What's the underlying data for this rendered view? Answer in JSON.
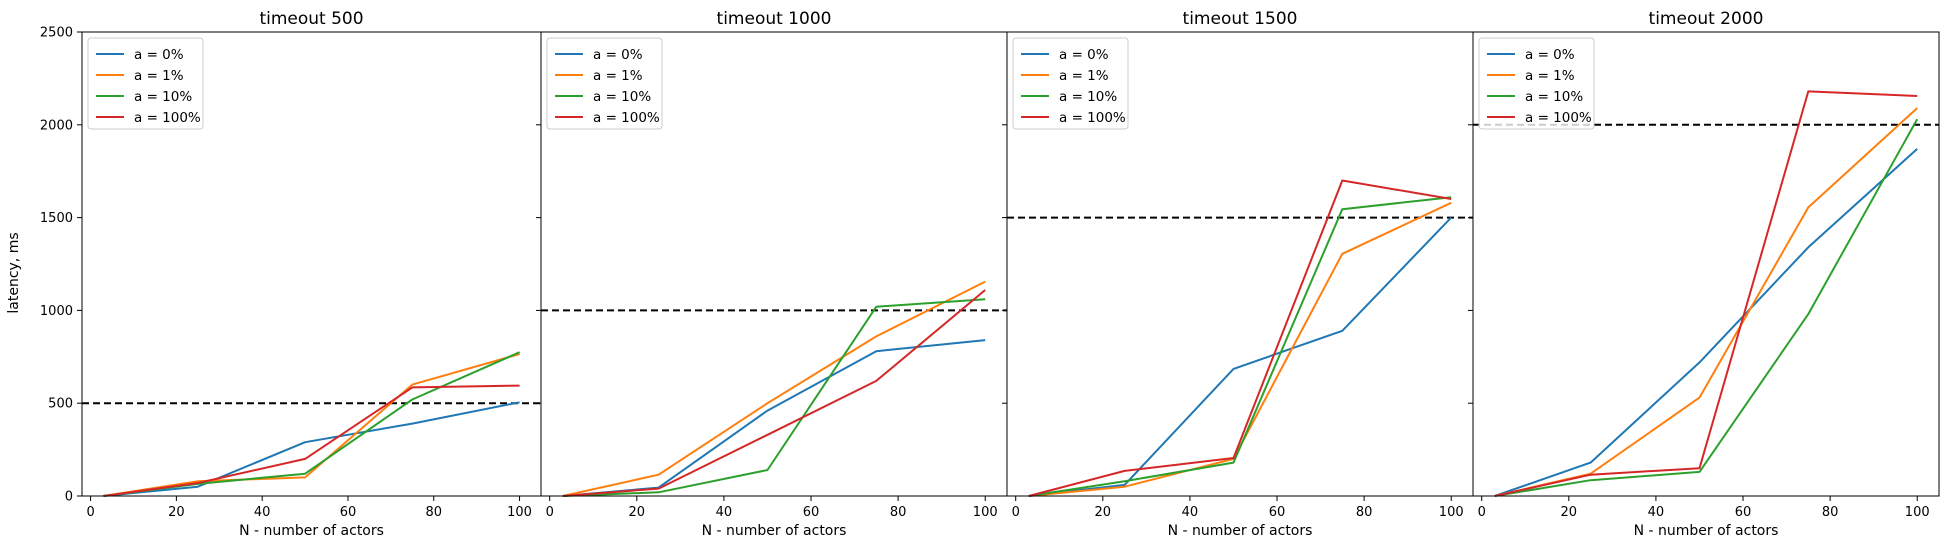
{
  "figure": {
    "ylabel": "latency, ms",
    "xlabel": "N - number of actors"
  },
  "colors": {
    "a = 0%": "#1f77b4",
    "a = 1%": "#ff7f0e",
    "a = 10%": "#2ca02c",
    "a = 100%": "#d62728",
    "threshold": "#000000"
  },
  "chart_data": [
    {
      "type": "line",
      "title": "timeout 500",
      "xlabel": "N - number of actors",
      "ylabel": "latency, ms",
      "xlim": [
        -2,
        105
      ],
      "ylim": [
        0,
        2500
      ],
      "xticks": [
        0,
        20,
        40,
        60,
        80,
        100
      ],
      "yticks": [
        0,
        500,
        1000,
        1500,
        2000,
        2500
      ],
      "legend_position": "top-left",
      "threshold": 500,
      "x": [
        3,
        25,
        50,
        75,
        100
      ],
      "series": [
        {
          "name": "a = 0%",
          "values": [
            0,
            50,
            290,
            390,
            505
          ]
        },
        {
          "name": "a = 1%",
          "values": [
            0,
            80,
            100,
            600,
            765
          ]
        },
        {
          "name": "a = 10%",
          "values": [
            0,
            65,
            120,
            520,
            775
          ]
        },
        {
          "name": "a = 100%",
          "values": [
            0,
            70,
            200,
            585,
            595
          ]
        }
      ]
    },
    {
      "type": "line",
      "title": "timeout 1000",
      "xlabel": "N - number of actors",
      "xlim": [
        -2,
        105
      ],
      "ylim": [
        0,
        2500
      ],
      "xticks": [
        0,
        20,
        40,
        60,
        80,
        100
      ],
      "legend_position": "top-left",
      "threshold": 1000,
      "x": [
        3,
        25,
        50,
        75,
        100
      ],
      "series": [
        {
          "name": "a = 0%",
          "values": [
            0,
            45,
            460,
            780,
            840
          ]
        },
        {
          "name": "a = 1%",
          "values": [
            0,
            115,
            500,
            860,
            1155
          ]
        },
        {
          "name": "a = 10%",
          "values": [
            0,
            20,
            140,
            1020,
            1060
          ]
        },
        {
          "name": "a = 100%",
          "values": [
            0,
            40,
            330,
            620,
            1110
          ]
        }
      ]
    },
    {
      "type": "line",
      "title": "timeout 1500",
      "xlabel": "N - number of actors",
      "xlim": [
        -2,
        105
      ],
      "ylim": [
        0,
        2500
      ],
      "xticks": [
        0,
        20,
        40,
        60,
        80,
        100
      ],
      "legend_position": "top-left",
      "threshold": 1500,
      "x": [
        3,
        25,
        50,
        75,
        100
      ],
      "series": [
        {
          "name": "a = 0%",
          "values": [
            0,
            60,
            685,
            890,
            1500
          ]
        },
        {
          "name": "a = 1%",
          "values": [
            0,
            50,
            200,
            1305,
            1580
          ]
        },
        {
          "name": "a = 10%",
          "values": [
            0,
            80,
            180,
            1545,
            1610
          ]
        },
        {
          "name": "a = 100%",
          "values": [
            0,
            135,
            205,
            1700,
            1600
          ]
        }
      ]
    },
    {
      "type": "line",
      "title": "timeout 2000",
      "xlabel": "N - number of actors",
      "xlim": [
        -2,
        105
      ],
      "ylim": [
        0,
        2500
      ],
      "xticks": [
        0,
        20,
        40,
        60,
        80,
        100
      ],
      "legend_position": "top-left",
      "threshold": 2000,
      "x": [
        3,
        25,
        50,
        75,
        100
      ],
      "series": [
        {
          "name": "a = 0%",
          "values": [
            0,
            180,
            720,
            1340,
            1870
          ]
        },
        {
          "name": "a = 1%",
          "values": [
            0,
            120,
            530,
            1555,
            2090
          ]
        },
        {
          "name": "a = 10%",
          "values": [
            0,
            85,
            130,
            980,
            2030
          ]
        },
        {
          "name": "a = 100%",
          "values": [
            0,
            115,
            150,
            2180,
            2155
          ]
        }
      ]
    }
  ]
}
